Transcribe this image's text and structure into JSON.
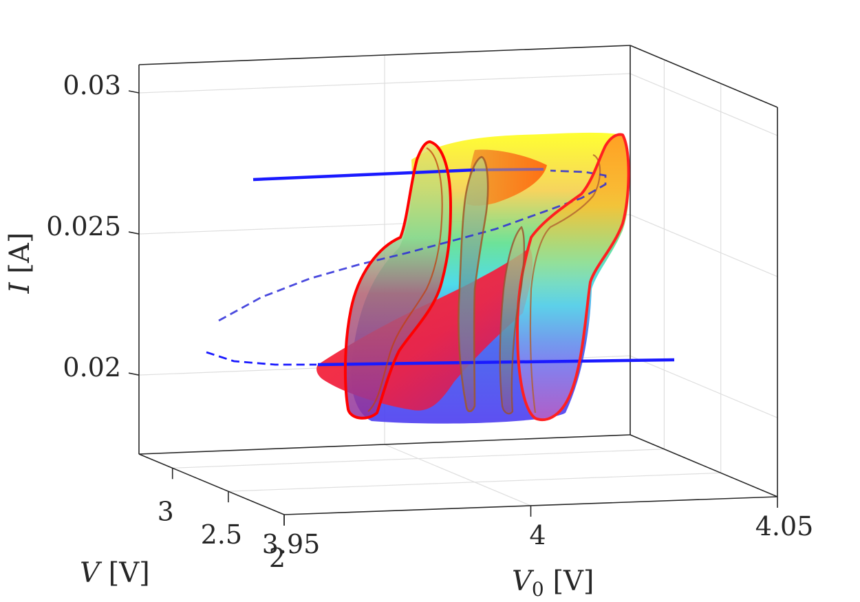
{
  "chart_data": {
    "type": "surface3d",
    "title": "",
    "axes": {
      "x": {
        "label_var": "V",
        "label_sub": "0",
        "label_unit": "[V]",
        "range": [
          3.95,
          4.05
        ],
        "ticks": [
          "3.95",
          "4",
          "4.05"
        ]
      },
      "y": {
        "label_var": "V",
        "label_unit": "[V]",
        "range": [
          2,
          3.3
        ],
        "ticks": [
          "2",
          "2.5",
          "3"
        ]
      },
      "z": {
        "label_var": "I",
        "label_unit": "[A]",
        "range": [
          0.0172,
          0.031
        ],
        "ticks": [
          "0.02",
          "0.025",
          "0.03"
        ]
      }
    },
    "grid": true,
    "colormap": "hsv (red-yellow-green-cyan-blue-magenta)",
    "series": [
      {
        "style": "solid blue",
        "V0": [
          3.95,
          4.05
        ],
        "V": [
          3.3,
          3.3
        ],
        "I": [
          0.0264,
          0.0264
        ]
      },
      {
        "style": "solid blue",
        "V0": [
          3.95,
          4.05
        ],
        "V": [
          2.0,
          2.0
        ],
        "I": [
          0.0197,
          0.0197
        ]
      },
      {
        "style": "dashed blue",
        "I": [
          0.0197,
          0.0202,
          0.0208,
          0.0216,
          0.0225,
          0.0234,
          0.0243,
          0.0252,
          0.026,
          0.0264
        ]
      }
    ],
    "annotations": [
      {
        "label": "red boundary curve, front",
        "color": "#ff0000"
      },
      {
        "label": "red boundary curve, back",
        "color": "#ff0000"
      }
    ]
  }
}
